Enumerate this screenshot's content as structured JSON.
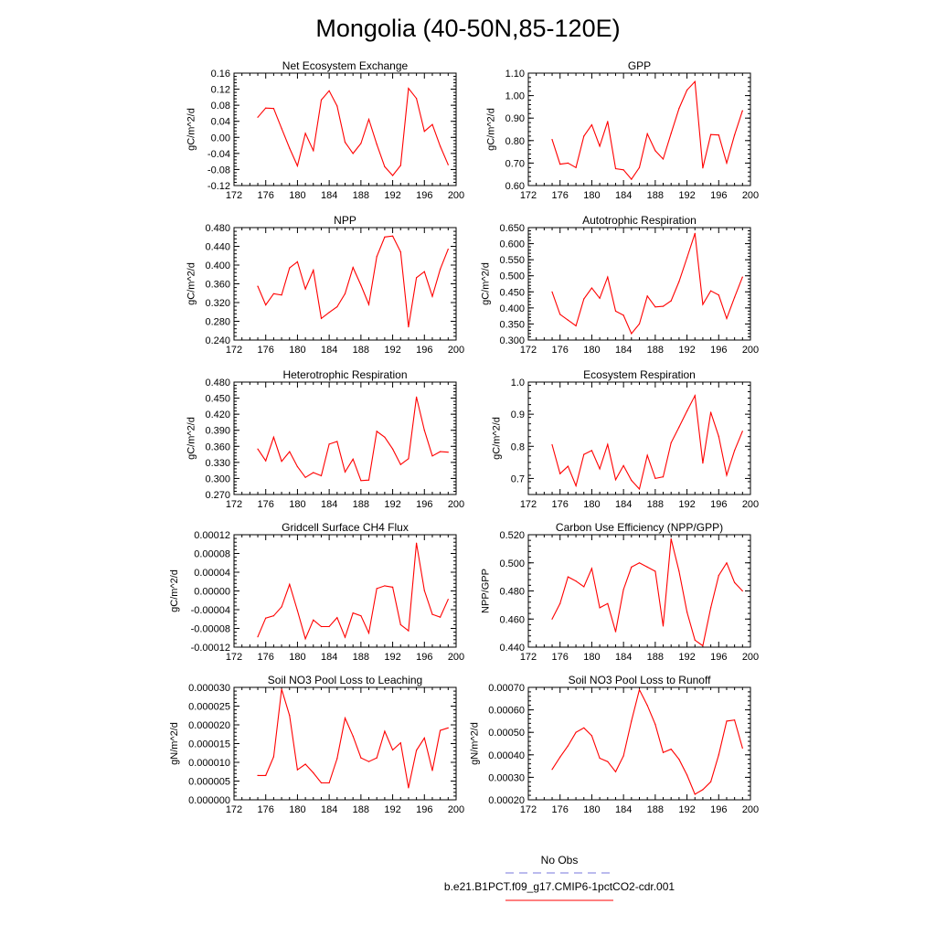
{
  "title": "Mongolia (40-50N,85-120E)",
  "colors": {
    "series": "#ff0000",
    "obs": "#7777dd",
    "frame": "#000000"
  },
  "legend": {
    "entries": [
      {
        "label": "No Obs",
        "color": "#7777dd",
        "dash": "dashed"
      },
      {
        "label": "b.e21.B1PCT.f09_g17.CMIP6-1pctCO2-cdr.001",
        "color": "#ff0000",
        "dash": "solid"
      }
    ]
  },
  "chart_data": [
    {
      "type": "line",
      "title": "Net Ecosystem Exchange",
      "ylabel": "gC/m^2/d",
      "xlim": [
        172,
        200
      ],
      "xticks": [
        "172",
        "176",
        "180",
        "184",
        "188",
        "192",
        "196",
        "200"
      ],
      "ylim": [
        -0.12,
        0.16
      ],
      "yticks": [
        "-0.12",
        "-0.08",
        "-0.04",
        "0.00",
        "0.04",
        "0.08",
        "0.12",
        "0.16"
      ],
      "x": [
        175,
        176,
        177,
        178,
        179,
        180,
        181,
        182,
        183,
        184,
        185,
        186,
        187,
        188,
        189,
        190,
        191,
        192,
        193,
        194,
        195,
        196,
        197,
        198,
        199
      ],
      "series": [
        {
          "values": [
            0.05,
            0.073,
            0.072,
            0.022,
            -0.027,
            -0.071,
            0.01,
            -0.033,
            0.093,
            0.116,
            0.078,
            -0.012,
            -0.04,
            -0.015,
            0.045,
            -0.017,
            -0.073,
            -0.095,
            -0.07,
            0.122,
            0.097,
            0.015,
            0.032,
            -0.022,
            -0.068
          ]
        }
      ]
    },
    {
      "type": "line",
      "title": "GPP",
      "ylabel": "gC/m^2/d",
      "xlim": [
        172,
        200
      ],
      "xticks": [
        "172",
        "176",
        "180",
        "184",
        "188",
        "192",
        "196",
        "200"
      ],
      "ylim": [
        0.6,
        1.1
      ],
      "yticks": [
        "0.60",
        "0.70",
        "0.80",
        "0.90",
        "1.00",
        "1.10"
      ],
      "x": [
        175,
        176,
        177,
        178,
        179,
        180,
        181,
        182,
        183,
        184,
        185,
        186,
        187,
        188,
        189,
        190,
        191,
        192,
        193,
        194,
        195,
        196,
        197,
        198,
        199
      ],
      "series": [
        {
          "values": [
            0.805,
            0.695,
            0.7,
            0.68,
            0.82,
            0.87,
            0.775,
            0.885,
            0.675,
            0.67,
            0.628,
            0.68,
            0.83,
            0.755,
            0.718,
            0.832,
            0.943,
            1.025,
            1.062,
            0.678,
            0.827,
            0.825,
            0.7,
            0.825,
            0.933
          ]
        }
      ]
    },
    {
      "type": "line",
      "title": "NPP",
      "ylabel": "gC/m^2/d",
      "xlim": [
        172,
        200
      ],
      "xticks": [
        "172",
        "176",
        "180",
        "184",
        "188",
        "192",
        "196",
        "200"
      ],
      "ylim": [
        0.24,
        0.48
      ],
      "yticks": [
        "0.240",
        "0.280",
        "0.320",
        "0.360",
        "0.400",
        "0.440",
        "0.480"
      ],
      "x": [
        175,
        176,
        177,
        178,
        179,
        180,
        181,
        182,
        183,
        184,
        185,
        186,
        187,
        188,
        189,
        190,
        191,
        192,
        193,
        194,
        195,
        196,
        197,
        198,
        199
      ],
      "series": [
        {
          "values": [
            0.355,
            0.315,
            0.339,
            0.336,
            0.394,
            0.407,
            0.349,
            0.389,
            0.286,
            0.299,
            0.311,
            0.339,
            0.395,
            0.357,
            0.316,
            0.418,
            0.46,
            0.462,
            0.428,
            0.268,
            0.373,
            0.386,
            0.333,
            0.391,
            0.434
          ]
        }
      ]
    },
    {
      "type": "line",
      "title": "Autotrophic Respiration",
      "ylabel": "gC/m^2/d",
      "xlim": [
        172,
        200
      ],
      "xticks": [
        "172",
        "176",
        "180",
        "184",
        "188",
        "192",
        "196",
        "200"
      ],
      "ylim": [
        0.3,
        0.65
      ],
      "yticks": [
        "0.300",
        "0.350",
        "0.400",
        "0.450",
        "0.500",
        "0.550",
        "0.600",
        "0.650"
      ],
      "x": [
        175,
        176,
        177,
        178,
        179,
        180,
        181,
        182,
        183,
        184,
        185,
        186,
        187,
        188,
        189,
        190,
        191,
        192,
        193,
        194,
        195,
        196,
        197,
        198,
        199
      ],
      "series": [
        {
          "values": [
            0.45,
            0.38,
            0.362,
            0.344,
            0.428,
            0.462,
            0.43,
            0.496,
            0.39,
            0.377,
            0.32,
            0.35,
            0.437,
            0.403,
            0.405,
            0.422,
            0.482,
            0.556,
            0.632,
            0.411,
            0.453,
            0.44,
            0.367,
            0.433,
            0.496
          ]
        }
      ]
    },
    {
      "type": "line",
      "title": "Heterotrophic Respiration",
      "ylabel": "gC/m^2/d",
      "xlim": [
        172,
        200
      ],
      "xticks": [
        "172",
        "176",
        "180",
        "184",
        "188",
        "192",
        "196",
        "200"
      ],
      "ylim": [
        0.27,
        0.48
      ],
      "yticks": [
        "0.270",
        "0.300",
        "0.330",
        "0.360",
        "0.390",
        "0.420",
        "0.450",
        "0.480"
      ],
      "x": [
        175,
        176,
        177,
        178,
        179,
        180,
        181,
        182,
        183,
        184,
        185,
        186,
        187,
        188,
        189,
        190,
        191,
        192,
        193,
        194,
        195,
        196,
        197,
        198,
        199
      ],
      "series": [
        {
          "values": [
            0.355,
            0.333,
            0.377,
            0.332,
            0.35,
            0.322,
            0.302,
            0.311,
            0.305,
            0.364,
            0.369,
            0.312,
            0.336,
            0.296,
            0.297,
            0.388,
            0.377,
            0.355,
            0.326,
            0.337,
            0.452,
            0.39,
            0.342,
            0.35,
            0.349
          ]
        }
      ]
    },
    {
      "type": "line",
      "title": "Ecosystem Respiration",
      "ylabel": "gC/m^2/d",
      "xlim": [
        172,
        200
      ],
      "xticks": [
        "172",
        "176",
        "180",
        "184",
        "188",
        "192",
        "196",
        "200"
      ],
      "ylim": [
        0.65,
        1.0
      ],
      "yticks": [
        "0.7",
        "0.8",
        "0.9",
        "1.0"
      ],
      "x": [
        175,
        176,
        177,
        178,
        179,
        180,
        181,
        182,
        183,
        184,
        185,
        186,
        187,
        188,
        189,
        190,
        191,
        192,
        193,
        194,
        195,
        196,
        197,
        198,
        199
      ],
      "series": [
        {
          "values": [
            0.805,
            0.715,
            0.738,
            0.677,
            0.775,
            0.787,
            0.73,
            0.806,
            0.696,
            0.74,
            0.694,
            0.667,
            0.772,
            0.7,
            0.705,
            0.811,
            0.86,
            0.91,
            0.958,
            0.748,
            0.906,
            0.831,
            0.71,
            0.787,
            0.847
          ]
        }
      ]
    },
    {
      "type": "line",
      "title": "Gridcell Surface CH4 Flux",
      "ylabel": "gC/m^2/d",
      "xlim": [
        172,
        200
      ],
      "xticks": [
        "172",
        "176",
        "180",
        "184",
        "188",
        "192",
        "196",
        "200"
      ],
      "ylim": [
        -0.00012,
        0.00012
      ],
      "yticks": [
        "-0.00012",
        "-0.00008",
        "-0.00004",
        "0.00000",
        "0.00004",
        "0.00008",
        "0.00012"
      ],
      "x": [
        175,
        176,
        177,
        178,
        179,
        180,
        181,
        182,
        183,
        184,
        185,
        186,
        187,
        188,
        189,
        190,
        191,
        192,
        193,
        194,
        195,
        196,
        197,
        198,
        199
      ],
      "series": [
        {
          "values": [
            -9.8e-05,
            -5.8e-05,
            -5.3e-05,
            -3.4e-05,
            1.4e-05,
            -4.2e-05,
            -0.000102,
            -6.2e-05,
            -7.6e-05,
            -7.6e-05,
            -5.7e-05,
            -9.9e-05,
            -4.7e-05,
            -5.3e-05,
            -9e-05,
            5e-06,
            1.1e-05,
            8e-06,
            -7.2e-05,
            -8.5e-05,
            0.000102,
            1e-06,
            -5e-05,
            -5.6e-05,
            -1.8e-05
          ]
        }
      ]
    },
    {
      "type": "line",
      "title": "Carbon Use Efficiency (NPP/GPP)",
      "ylabel": "NPP/GPP",
      "xlim": [
        172,
        200
      ],
      "xticks": [
        "172",
        "176",
        "180",
        "184",
        "188",
        "192",
        "196",
        "200"
      ],
      "ylim": [
        0.44,
        0.52
      ],
      "yticks": [
        "0.440",
        "0.460",
        "0.480",
        "0.500",
        "0.520"
      ],
      "x": [
        175,
        176,
        177,
        178,
        179,
        180,
        181,
        182,
        183,
        184,
        185,
        186,
        187,
        188,
        189,
        190,
        191,
        192,
        193,
        194,
        195,
        196,
        197,
        198,
        199
      ],
      "series": [
        {
          "values": [
            0.46,
            0.471,
            0.49,
            0.487,
            0.483,
            0.496,
            0.468,
            0.471,
            0.451,
            0.481,
            0.497,
            0.5,
            0.497,
            0.494,
            0.455,
            0.517,
            0.494,
            0.465,
            0.445,
            0.441,
            0.468,
            0.491,
            0.5,
            0.486,
            0.48
          ]
        }
      ]
    },
    {
      "type": "line",
      "title": "Soil NO3 Pool Loss to Leaching",
      "ylabel": "gN/m^2/d",
      "xlim": [
        172,
        200
      ],
      "xticks": [
        "172",
        "176",
        "180",
        "184",
        "188",
        "192",
        "196",
        "200"
      ],
      "ylim": [
        0.0,
        3e-05
      ],
      "yticks": [
        "0.000000",
        "0.000005",
        "0.000010",
        "0.000015",
        "0.000020",
        "0.000025",
        "0.000030"
      ],
      "x": [
        175,
        176,
        177,
        178,
        179,
        180,
        181,
        182,
        183,
        184,
        185,
        186,
        187,
        188,
        189,
        190,
        191,
        192,
        193,
        194,
        195,
        196,
        197,
        198,
        199
      ],
      "series": [
        {
          "values": [
            6.5e-06,
            6.5e-06,
            1.15e-05,
            2.95e-05,
            2.25e-05,
            8e-06,
            9.5e-06,
            7.2e-06,
            4.5e-06,
            4.5e-06,
            1.1e-05,
            2.18e-05,
            1.7e-05,
            1.12e-05,
            1.02e-05,
            1.12e-05,
            1.83e-05,
            1.33e-05,
            1.52e-05,
            3.2e-06,
            1.32e-05,
            1.65e-05,
            7.8e-06,
            1.85e-05,
            1.92e-05
          ]
        }
      ]
    },
    {
      "type": "line",
      "title": "Soil NO3 Pool Loss to Runoff",
      "ylabel": "gN/m^2/d",
      "xlim": [
        172,
        200
      ],
      "xticks": [
        "172",
        "176",
        "180",
        "184",
        "188",
        "192",
        "196",
        "200"
      ],
      "ylim": [
        0.0002,
        0.0007
      ],
      "yticks": [
        "0.00020",
        "0.00030",
        "0.00040",
        "0.00050",
        "0.00060",
        "0.00070"
      ],
      "x": [
        175,
        176,
        177,
        178,
        179,
        180,
        181,
        182,
        183,
        184,
        185,
        186,
        187,
        188,
        189,
        190,
        191,
        192,
        193,
        194,
        195,
        196,
        197,
        198,
        199
      ],
      "series": [
        {
          "values": [
            0.000335,
            0.00039,
            0.00044,
            0.0005,
            0.00052,
            0.000485,
            0.000385,
            0.00037,
            0.000325,
            0.000395,
            0.00055,
            0.00069,
            0.00062,
            0.000535,
            0.00041,
            0.000425,
            0.00038,
            0.00031,
            0.000225,
            0.000245,
            0.00028,
            0.0004,
            0.00055,
            0.000555,
            0.00043
          ]
        }
      ]
    }
  ]
}
